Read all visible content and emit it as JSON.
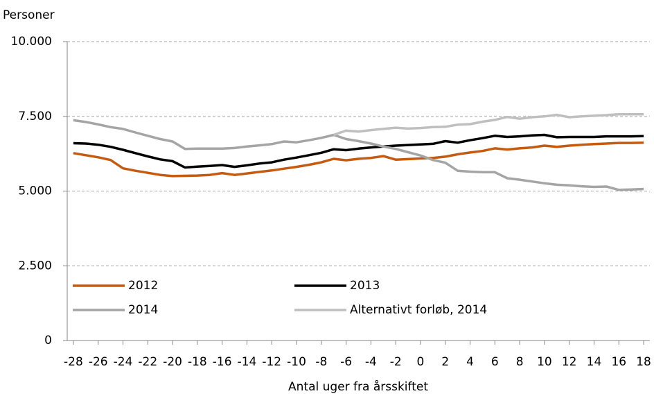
{
  "chart_data": {
    "type": "line",
    "y_label": "Personer",
    "x_label": "Antal uger fra årsskiftet",
    "x": [
      -28,
      -27,
      -26,
      -25,
      -24,
      -23,
      -22,
      -21,
      -20,
      -19,
      -18,
      -17,
      -16,
      -15,
      -14,
      -13,
      -12,
      -11,
      -10,
      -9,
      -8,
      -7,
      -6,
      -5,
      -4,
      -3,
      -2,
      -1,
      0,
      1,
      2,
      3,
      4,
      5,
      6,
      7,
      8,
      9,
      10,
      11,
      12,
      13,
      14,
      15,
      16,
      17,
      18
    ],
    "series": [
      {
        "name": "2012",
        "color": "#c55a11",
        "values": [
          6270,
          6200,
          6130,
          6040,
          5760,
          5680,
          5610,
          5540,
          5500,
          5510,
          5520,
          5540,
          5600,
          5540,
          5590,
          5640,
          5690,
          5750,
          5810,
          5880,
          5960,
          6080,
          6030,
          6080,
          6110,
          6170,
          6050,
          6070,
          6090,
          6110,
          6150,
          6230,
          6290,
          6340,
          6430,
          6390,
          6430,
          6460,
          6520,
          6480,
          6520,
          6550,
          6570,
          6590,
          6610,
          6610,
          6620
        ]
      },
      {
        "name": "2013",
        "color": "#000000",
        "values": [
          6600,
          6590,
          6550,
          6480,
          6380,
          6270,
          6160,
          6060,
          6000,
          5790,
          5820,
          5840,
          5870,
          5810,
          5860,
          5920,
          5960,
          6050,
          6120,
          6200,
          6280,
          6400,
          6370,
          6420,
          6460,
          6490,
          6520,
          6540,
          6560,
          6580,
          6670,
          6620,
          6700,
          6770,
          6850,
          6810,
          6830,
          6860,
          6880,
          6800,
          6810,
          6810,
          6810,
          6830,
          6830,
          6830,
          6840
        ]
      },
      {
        "name": "2014",
        "color": "#a5a5a5",
        "values": [
          7370,
          7310,
          7230,
          7140,
          7080,
          6960,
          6850,
          6740,
          6660,
          6410,
          6420,
          6420,
          6420,
          6440,
          6490,
          6530,
          6570,
          6660,
          6630,
          6700,
          6780,
          6880,
          6740,
          6670,
          6590,
          6490,
          6410,
          6300,
          6190,
          6040,
          5950,
          5680,
          5650,
          5630,
          5630,
          5430,
          5380,
          5320,
          5260,
          5210,
          5190,
          5160,
          5140,
          5150,
          5040,
          5050,
          5070
        ]
      },
      {
        "name": "Alternativt forløb, 2014",
        "color": "#bfbfbf",
        "values": [
          null,
          null,
          null,
          null,
          null,
          null,
          null,
          null,
          null,
          null,
          null,
          null,
          null,
          null,
          null,
          null,
          null,
          null,
          null,
          null,
          null,
          6880,
          7020,
          6990,
          7040,
          7080,
          7120,
          7090,
          7110,
          7140,
          7150,
          7220,
          7240,
          7320,
          7380,
          7480,
          7420,
          7470,
          7500,
          7550,
          7470,
          7500,
          7520,
          7540,
          7570,
          7570,
          7570
        ]
      }
    ],
    "xlim": [
      -28.5,
      18.5
    ],
    "xticks": [
      -28,
      -26,
      -24,
      -22,
      -20,
      -18,
      -16,
      -14,
      -12,
      -10,
      -8,
      -6,
      -4,
      -2,
      0,
      2,
      4,
      6,
      8,
      10,
      12,
      14,
      16,
      18
    ],
    "ylim": [
      0,
      10000
    ],
    "yticks": [
      0,
      {
        "value": 2500,
        "label": "2.500"
      },
      {
        "value": 5000,
        "label": "5.000"
      },
      {
        "value": 7500,
        "label": "7.500"
      },
      {
        "value": 10000,
        "label": "10.000"
      }
    ],
    "grid": true,
    "legend": "bottom-left"
  }
}
